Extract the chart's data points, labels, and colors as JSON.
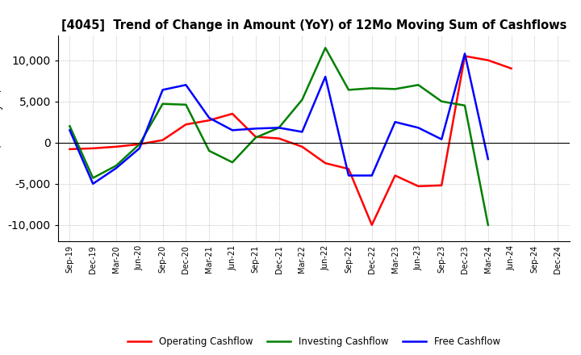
{
  "title": "[4045]  Trend of Change in Amount (YoY) of 12Mo Moving Sum of Cashflows",
  "x_labels": [
    "Sep-19",
    "Dec-19",
    "Mar-20",
    "Jun-20",
    "Sep-20",
    "Dec-20",
    "Mar-21",
    "Jun-21",
    "Sep-21",
    "Dec-21",
    "Mar-22",
    "Jun-22",
    "Sep-22",
    "Dec-22",
    "Mar-23",
    "Jun-23",
    "Sep-23",
    "Dec-23",
    "Mar-24",
    "Jun-24",
    "Sep-24",
    "Dec-24"
  ],
  "operating": [
    -800,
    -700,
    -500,
    -200,
    300,
    2200,
    2700,
    3500,
    700,
    500,
    -500,
    -2500,
    -3200,
    -10000,
    -4000,
    -5300,
    -5200,
    10500,
    10000,
    9000,
    null,
    null
  ],
  "investing": [
    2000,
    -4300,
    -2800,
    -200,
    4700,
    4600,
    -1000,
    -2400,
    600,
    1800,
    5200,
    11500,
    6400,
    6600,
    6500,
    7000,
    5000,
    4500,
    -10000,
    null,
    null,
    null
  ],
  "free": [
    1500,
    -5000,
    -3100,
    -700,
    6400,
    7000,
    3000,
    1500,
    1700,
    1800,
    1300,
    8000,
    -4000,
    -4000,
    2500,
    1800,
    400,
    10800,
    -2000,
    null,
    null,
    null
  ],
  "operating_color": "#ff0000",
  "investing_color": "#008000",
  "free_color": "#0000ff",
  "ylim": [
    -12000,
    13000
  ],
  "yticks": [
    -10000,
    -5000,
    0,
    5000,
    10000
  ],
  "background_color": "#ffffff",
  "grid_color": "#999999"
}
